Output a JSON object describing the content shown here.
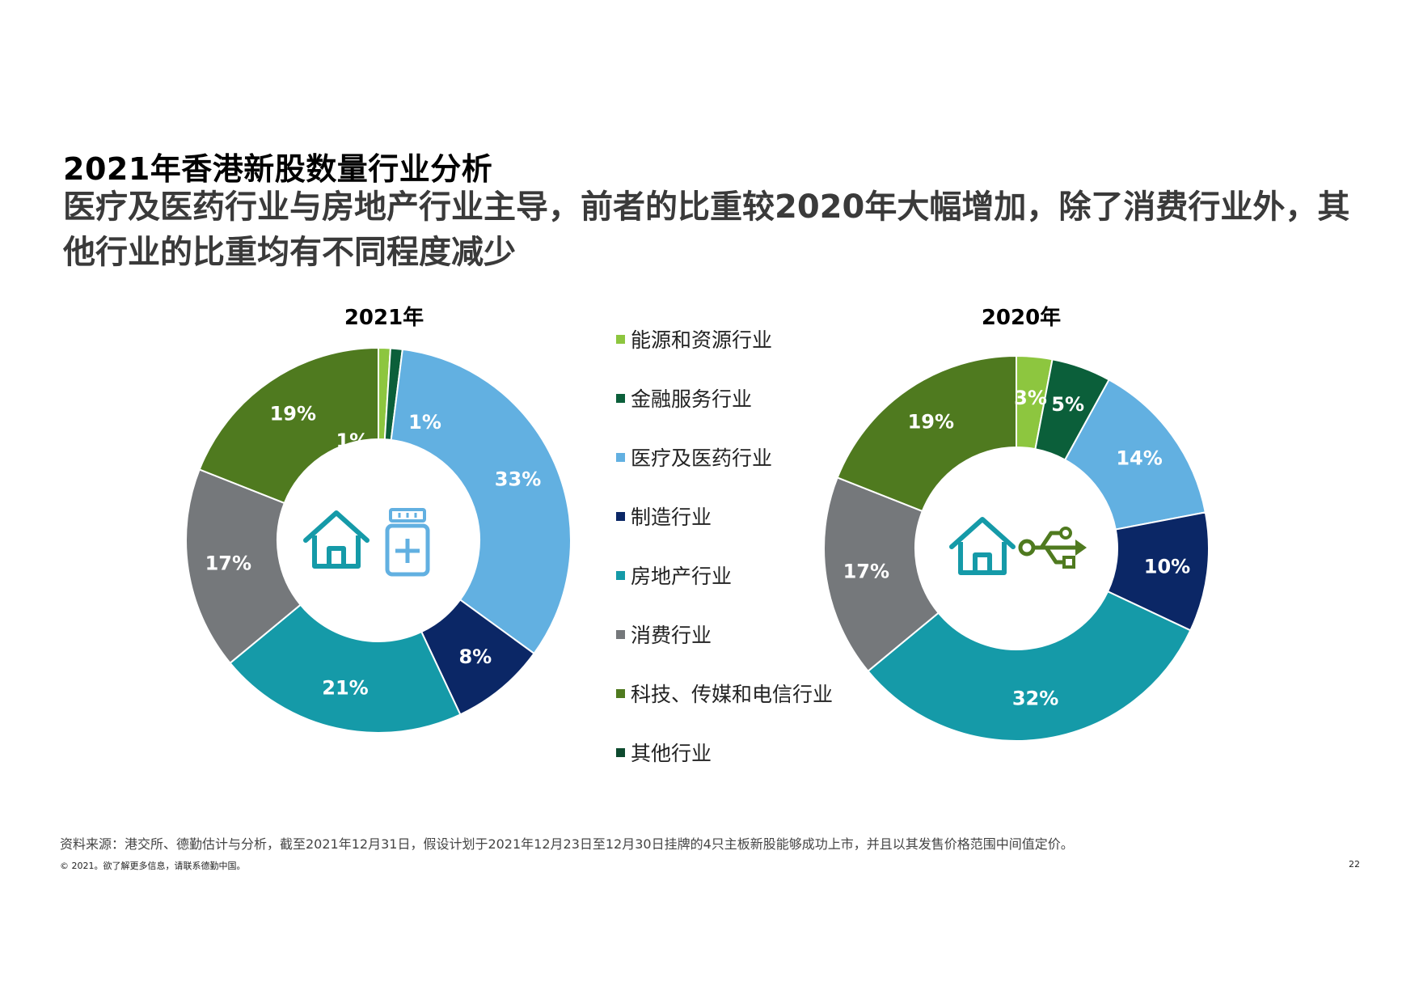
{
  "page": {
    "title": "2021年香港新股数量行业分析",
    "subtitle": "医疗及医药行业与房地产行业主导，前者的比重较2020年大幅增加，除了消费行业外，其他行业的比重均有不同程度减少",
    "source": "资料来源：港交所、德勤估计与分析，截至2021年12月31日，假设计划于2021年12月23日至12月30日挂牌的4只主板新股能够成功上市，并且以其发售价格范围中间值定价。",
    "copyright": "© 2021。欲了解更多信息，请联系德勤中国。",
    "page_number": "22"
  },
  "colors": {
    "energy": "#8dc63f",
    "financial": "#0b5f3a",
    "healthcare": "#62b0e1",
    "manufacturing": "#0b2766",
    "property": "#159aa8",
    "consumer": "#75787b",
    "tmt": "#4f7a1f",
    "other": "#0d4a2e"
  },
  "icons": {
    "chart_2021": [
      "house-icon",
      "medicine-bottle-icon"
    ],
    "chart_2020": [
      "house-icon",
      "usb-icon"
    ]
  },
  "legend": [
    {
      "label": "能源和资源行业",
      "color": "#8dc63f"
    },
    {
      "label": "金融服务行业",
      "color": "#0b5f3a"
    },
    {
      "label": "医疗及医药行业",
      "color": "#62b0e1"
    },
    {
      "label": "制造行业",
      "color": "#0b2766"
    },
    {
      "label": "房地产行业",
      "color": "#159aa8"
    },
    {
      "label": "消费行业",
      "color": "#75787b"
    },
    {
      "label": "科技、传媒和电信行业",
      "color": "#4f7a1f"
    },
    {
      "label": "其他行业",
      "color": "#0d4a2e"
    }
  ],
  "chart_data": [
    {
      "type": "pie",
      "title": "2021年",
      "categories": [
        "能源和资源行业",
        "金融服务行业",
        "医疗及医药行业",
        "制造行业",
        "房地产行业",
        "消费行业",
        "科技、传媒和电信行业"
      ],
      "values": [
        1,
        1,
        33,
        8,
        21,
        17,
        19
      ],
      "labels": [
        "1%",
        "1%",
        "33%",
        "8%",
        "21%",
        "17%",
        "19%"
      ],
      "colors": [
        "#8dc63f",
        "#0b5f3a",
        "#62b0e1",
        "#0b2766",
        "#159aa8",
        "#75787b",
        "#4f7a1f"
      ],
      "legend": "center"
    },
    {
      "type": "pie",
      "title": "2020年",
      "categories": [
        "能源和资源行业",
        "金融服务行业",
        "医疗及医药行业",
        "制造行业",
        "房地产行业",
        "消费行业",
        "科技、传媒和电信行业"
      ],
      "values": [
        3,
        5,
        14,
        10,
        32,
        17,
        19
      ],
      "labels": [
        "3%",
        "5%",
        "14%",
        "10%",
        "32%",
        "17%",
        "19%"
      ],
      "colors": [
        "#8dc63f",
        "#0b5f3a",
        "#62b0e1",
        "#0b2766",
        "#159aa8",
        "#75787b",
        "#4f7a1f"
      ],
      "legend": "center"
    }
  ]
}
